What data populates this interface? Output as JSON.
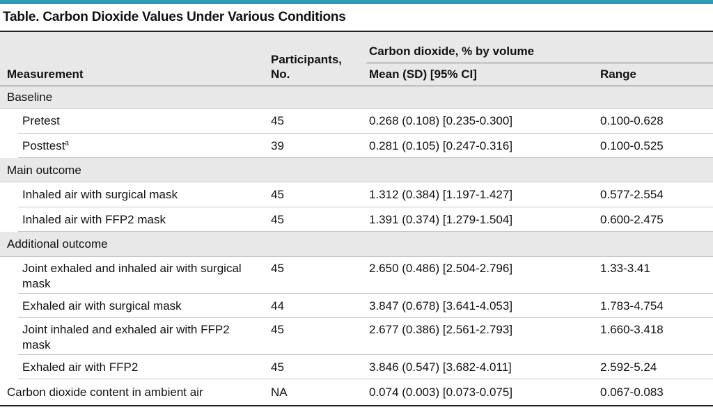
{
  "title": "Table. Carbon Dioxide Values Under Various Conditions",
  "header": {
    "measurement": "Measurement",
    "participants_line1": "Participants,",
    "participants_line2": "No.",
    "co2_group": "Carbon dioxide, % by volume",
    "mean": "Mean (SD) [95% CI]",
    "range": "Range"
  },
  "rows": [
    {
      "label": "Baseline"
    },
    {
      "label": "Pretest",
      "participants": "45",
      "mean": "0.268 (0.108) [0.235-0.300]",
      "range": "0.100-0.628"
    },
    {
      "label": "Posttest",
      "footnote": "a",
      "participants": "39",
      "mean": "0.281 (0.105) [0.247-0.316]",
      "range": "0.100-0.525"
    },
    {
      "label": "Main outcome"
    },
    {
      "label": "Inhaled air with surgical mask",
      "participants": "45",
      "mean": "1.312 (0.384) [1.197-1.427]",
      "range": "0.577-2.554"
    },
    {
      "label": "Inhaled air with FFP2 mask",
      "participants": "45",
      "mean": "1.391 (0.374) [1.279-1.504]",
      "range": "0.600-2.475"
    },
    {
      "label": "Additional outcome"
    },
    {
      "label": "Joint exhaled and inhaled air with surgical mask",
      "participants": "45",
      "mean": "2.650 (0.486) [2.504-2.796]",
      "range": "1.33-3.41"
    },
    {
      "label": "Exhaled air with surgical mask",
      "participants": "44",
      "mean": "3.847 (0.678) [3.641-4.053]",
      "range": "1.783-4.754"
    },
    {
      "label": "Joint inhaled and exhaled air with FFP2 mask",
      "participants": "45",
      "mean": "2.677 (0.386) [2.561-2.793]",
      "range": "1.660-3.418"
    },
    {
      "label": "Exhaled air with FFP2",
      "participants": "45",
      "mean": "3.846 (0.547) [3.682-4.011]",
      "range": "2.592-5.24"
    },
    {
      "label": "Carbon dioxide content in ambient air",
      "participants": "NA",
      "mean": "0.074 (0.003) [0.073-0.075]",
      "range": "0.067-0.083"
    }
  ]
}
